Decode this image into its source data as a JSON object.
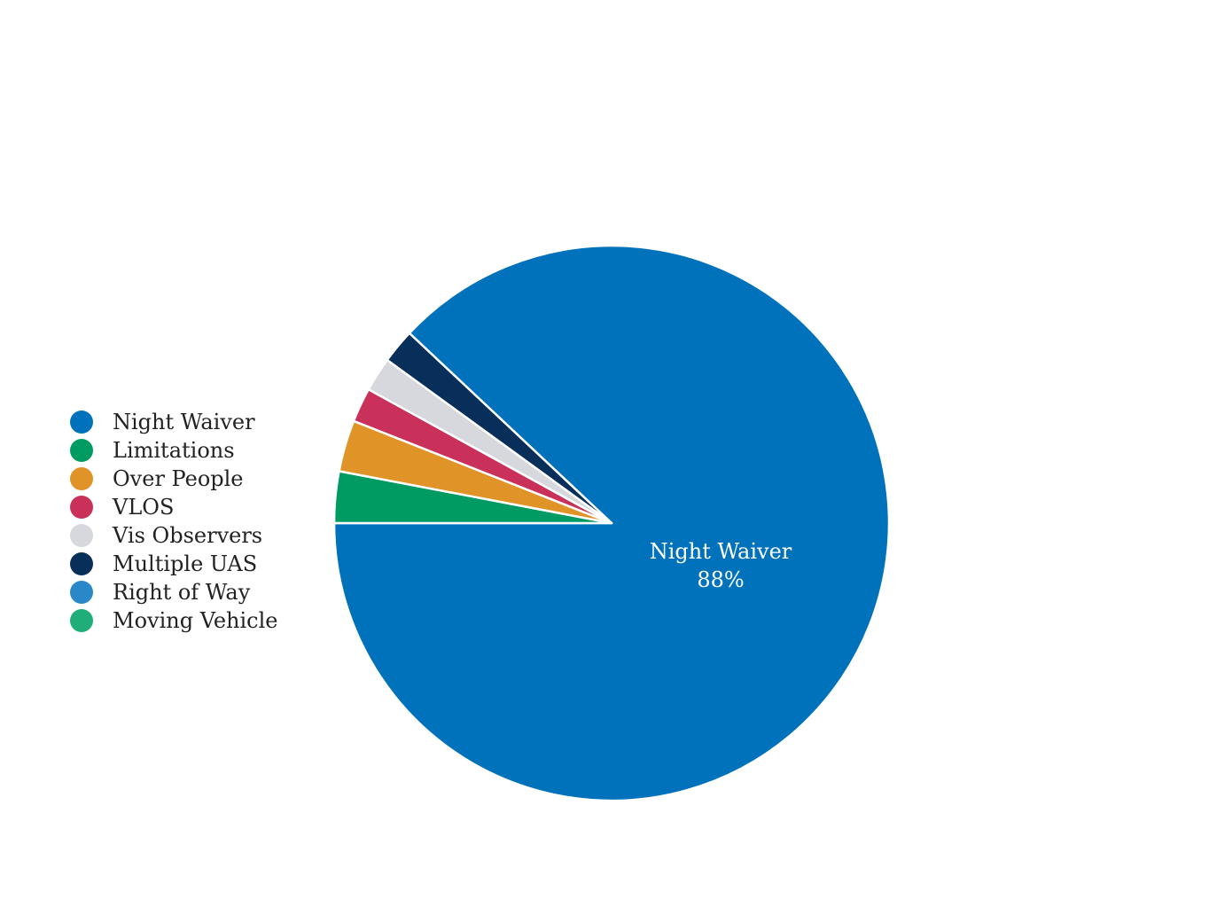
{
  "chart_data": {
    "type": "pie",
    "categories": [
      "Night Waiver",
      "Limitations",
      "Over People",
      "VLOS",
      "Vis Observers",
      "Multiple UAS",
      "Right of Way",
      "Moving Vehicle"
    ],
    "values": [
      88,
      3,
      3,
      2,
      2,
      2,
      0,
      0
    ],
    "colors": [
      "#0072bc",
      "#009b63",
      "#e09326",
      "#c9305a",
      "#d6d8dd",
      "#082e5a",
      "#2a87c8",
      "#1fae78"
    ],
    "exploded": [
      "Limitations",
      "Over People",
      "VLOS",
      "Vis Observers",
      "Multiple UAS"
    ],
    "data_labels": [
      {
        "category": "Night Waiver",
        "text": "Night Waiver",
        "value_text": "88%"
      }
    ],
    "legend_position": "left"
  }
}
